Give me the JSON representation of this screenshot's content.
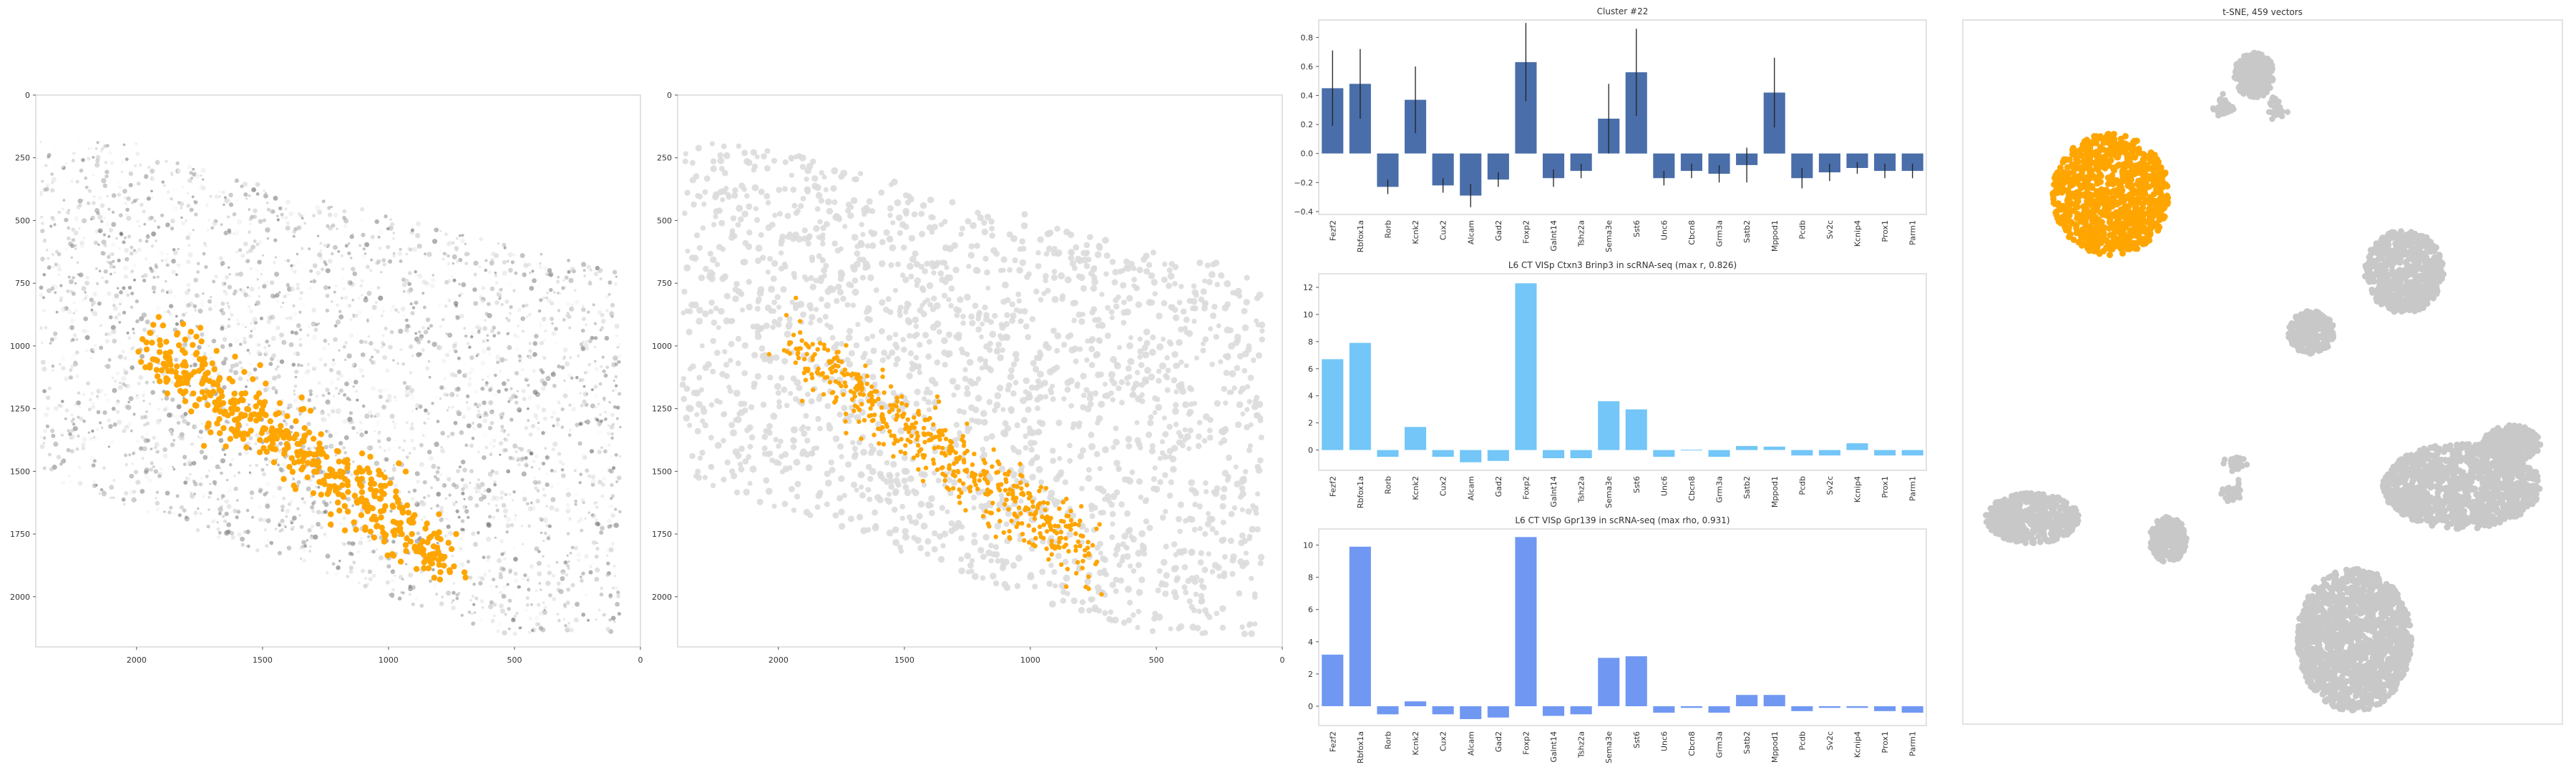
{
  "colors": {
    "highlight": "#ffa500",
    "bars_cluster": "#4a6ea9",
    "bars_ctxn3": "#73c6f7",
    "bars_gpr139": "#7098f2",
    "grey_points": "#c8c8c8"
  },
  "chart_data": [
    {
      "type": "scatter",
      "id": "spatial_left",
      "title": "",
      "xlim": [
        2400,
        0
      ],
      "ylim": [
        2200,
        0
      ],
      "xticks": [
        "2000",
        "1500",
        "1000",
        "500",
        "0"
      ],
      "yticks": [
        "0",
        "250",
        "500",
        "750",
        "1000",
        "1250",
        "1500",
        "1750",
        "2000"
      ],
      "grid": false,
      "description_series": [
        {
          "name": "",
          "style": "grey-intensity points",
          "region_x": [
            2400,
            100
          ],
          "region_y": [
            200,
            2200
          ]
        },
        {
          "name": "",
          "style": "orange highlighted cells",
          "band_from": [
            1950,
            1000
          ],
          "band_to": [
            750,
            1850
          ]
        }
      ]
    },
    {
      "type": "scatter",
      "id": "spatial_right",
      "title": "",
      "xlim": [
        2400,
        0
      ],
      "ylim": [
        2200,
        0
      ],
      "xticks": [
        "2000",
        "1500",
        "1000",
        "500",
        "0"
      ],
      "yticks": [
        "0",
        "250",
        "500",
        "750",
        "1000",
        "1250",
        "1500",
        "1750",
        "2000"
      ],
      "grid": false
    },
    {
      "type": "bar",
      "id": "cluster_bars",
      "title": "Cluster #22",
      "categories": [
        "Fezf2",
        "Rbfox1a",
        "Rorb",
        "Kcnk2",
        "Cux2",
        "Alcam",
        "Gad2",
        "Foxp2",
        "Galnt14",
        "Tshz2a",
        "Sema3e",
        "Sst6",
        "Unc6",
        "Cbcn8",
        "Grm3a",
        "Satb2",
        "Mppod1",
        "Pcdb",
        "Sv2c",
        "Kcnip4",
        "Prox1",
        "Parm1"
      ],
      "values": [
        0.45,
        0.48,
        -0.23,
        0.37,
        -0.22,
        -0.29,
        -0.18,
        0.63,
        -0.17,
        -0.12,
        0.24,
        0.56,
        -0.17,
        -0.12,
        -0.14,
        -0.08,
        0.42,
        -0.17,
        -0.13,
        -0.1,
        -0.12,
        -0.12
      ],
      "errors": [
        0.26,
        0.24,
        0.05,
        0.23,
        0.05,
        0.08,
        0.05,
        0.27,
        0.06,
        0.05,
        0.24,
        0.3,
        0.05,
        0.05,
        0.06,
        0.12,
        0.24,
        0.07,
        0.06,
        0.04,
        0.05,
        0.05
      ],
      "yticks": [
        "0.8",
        "0.6",
        "0.4",
        "0.2",
        "0.0",
        "−0.2",
        "−0.4"
      ],
      "ylim": [
        -0.42,
        0.92
      ],
      "grid": false
    },
    {
      "type": "bar",
      "id": "ctxn3_bars",
      "title": "L6 CT VISp Ctxn3 Brinp3 in scRNA-seq (max r, 0.826)",
      "categories": [
        "Fezf2",
        "Rbfox1a",
        "Rorb",
        "Kcnk2",
        "Cux2",
        "Alcam",
        "Gad2",
        "Foxp2",
        "Galnt14",
        "Tshz2a",
        "Sema3e",
        "Sst6",
        "Unc6",
        "Cbcn8",
        "Grm3a",
        "Satb2",
        "Mppod1",
        "Pcdb",
        "Sv2c",
        "Kcnip4",
        "Prox1",
        "Parm1"
      ],
      "values": [
        6.7,
        7.9,
        -0.5,
        1.7,
        -0.5,
        -0.9,
        -0.8,
        12.3,
        -0.6,
        -0.6,
        3.6,
        3.0,
        -0.5,
        0.02,
        -0.5,
        0.3,
        0.25,
        -0.4,
        -0.4,
        0.5,
        -0.4,
        -0.4
      ],
      "yticks": [
        "12",
        "10",
        "8",
        "6",
        "4",
        "2",
        "0"
      ],
      "ylim": [
        -1.5,
        13
      ],
      "grid": false
    },
    {
      "type": "bar",
      "id": "gpr139_bars",
      "title": "L6 CT VISp Gpr139 in scRNA-seq (max rho, 0.931)",
      "categories": [
        "Fezf2",
        "Rbfox1a",
        "Rorb",
        "Kcnk2",
        "Cux2",
        "Alcam",
        "Gad2",
        "Foxp2",
        "Galnt14",
        "Tshz2a",
        "Sema3e",
        "Sst6",
        "Unc6",
        "Cbcn8",
        "Grm3a",
        "Satb2",
        "Mppod1",
        "Pcdb",
        "Sv2c",
        "Kcnip4",
        "Prox1",
        "Parm1"
      ],
      "values": [
        3.2,
        9.9,
        -0.5,
        0.3,
        -0.5,
        -0.8,
        -0.7,
        10.5,
        -0.6,
        -0.5,
        3.0,
        3.1,
        -0.4,
        -0.1,
        -0.4,
        0.7,
        0.7,
        -0.3,
        -0.1,
        -0.1,
        -0.3,
        -0.4
      ],
      "yticks": [
        "10",
        "8",
        "6",
        "4",
        "2",
        "0"
      ],
      "ylim": [
        -1.2,
        11
      ],
      "grid": false
    },
    {
      "type": "scatter",
      "id": "tsne",
      "title": "t-SNE, 459 vectors",
      "grid": false,
      "clusters": [
        {
          "highlight": false,
          "cx": 3150,
          "cy": 105,
          "rx": 28,
          "ry": 32,
          "n": 260
        },
        {
          "highlight": true,
          "cx": 2950,
          "cy": 272,
          "rx": 82,
          "ry": 85,
          "n": 900
        },
        {
          "highlight": false,
          "cx": 3360,
          "cy": 380,
          "rx": 55,
          "ry": 58,
          "n": 600
        },
        {
          "highlight": false,
          "cx": 3230,
          "cy": 465,
          "rx": 32,
          "ry": 30,
          "n": 260
        },
        {
          "highlight": false,
          "cx": 2840,
          "cy": 725,
          "rx": 65,
          "ry": 35,
          "n": 480
        },
        {
          "highlight": false,
          "cx": 3030,
          "cy": 755,
          "rx": 26,
          "ry": 32,
          "n": 230
        },
        {
          "highlight": false,
          "cx": 3290,
          "cy": 895,
          "rx": 80,
          "ry": 100,
          "n": 1400
        },
        {
          "highlight": false,
          "cx": 3440,
          "cy": 680,
          "rx": 110,
          "ry": 60,
          "n": 1100
        },
        {
          "highlight": false,
          "cx": 3510,
          "cy": 620,
          "rx": 40,
          "ry": 25,
          "n": 300
        }
      ]
    }
  ]
}
